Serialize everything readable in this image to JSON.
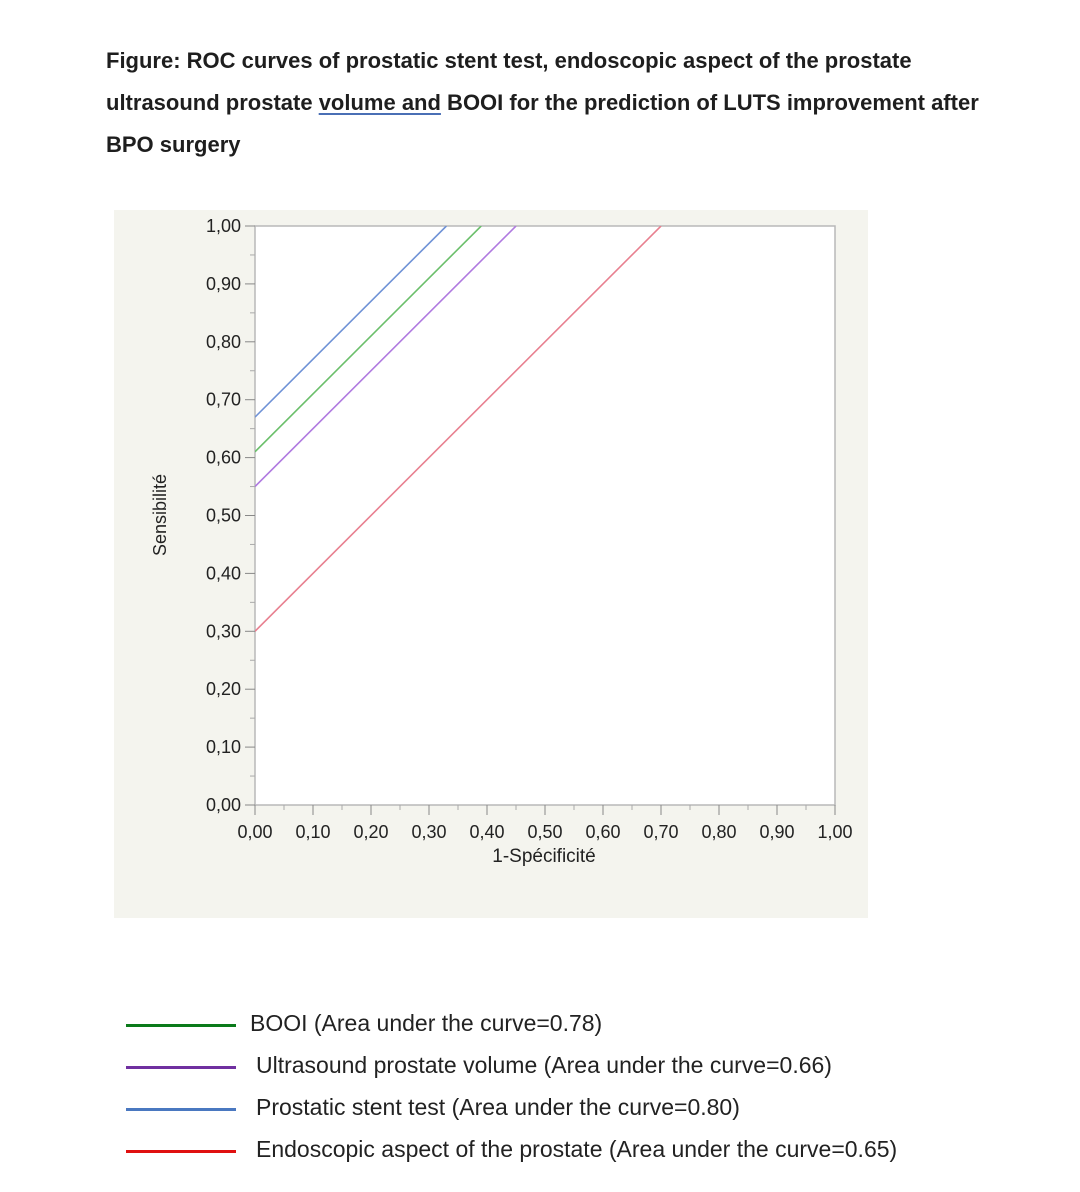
{
  "caption": {
    "part1": "Figure: ROC curves of prostatic stent test, endoscopic aspect of the prostate ultrasound prostate ",
    "underlined": "volume  and",
    "part2": " BOOI for the prediction of LUTS improvement after BPO surgery"
  },
  "chart_data": {
    "type": "line",
    "xlabel": "1-Spécificité",
    "ylabel": "Sensibilité",
    "xlim": [
      0,
      1
    ],
    "ylim": [
      0,
      1
    ],
    "xticks": [
      "0,00",
      "0,10",
      "0,20",
      "0,30",
      "0,40",
      "0,50",
      "0,60",
      "0,70",
      "0,80",
      "0,90",
      "1,00"
    ],
    "yticks": [
      "0,00",
      "0,10",
      "0,20",
      "0,30",
      "0,40",
      "0,50",
      "0,60",
      "0,70",
      "0,80",
      "0,90",
      "1,00"
    ],
    "grid": false,
    "legend_position": "bottom",
    "series": [
      {
        "name": "BOOI (Area under the curve=0.78)",
        "color": "#6bbf6b",
        "legend_color": "#0a7a1a",
        "points": [
          [
            0,
            0.61
          ],
          [
            0.39,
            1.0
          ]
        ]
      },
      {
        "name": "Ultrasound prostate volume (Area under the curve=0.66)",
        "color": "#b07ae0",
        "legend_color": "#7030a0",
        "points": [
          [
            0,
            0.55
          ],
          [
            0.45,
            1.0
          ]
        ]
      },
      {
        "name": "Prostatic stent test (Area under the curve=0.80)",
        "color": "#6f92d6",
        "legend_color": "#4a78c0",
        "points": [
          [
            0,
            0.67
          ],
          [
            0.33,
            1.0
          ]
        ]
      },
      {
        "name": "Endoscopic aspect of the prostate (Area under the curve=0.65)",
        "color": "#e88090",
        "legend_color": "#e01010",
        "points": [
          [
            0,
            0.3
          ],
          [
            0.7,
            1.0
          ]
        ]
      }
    ]
  }
}
